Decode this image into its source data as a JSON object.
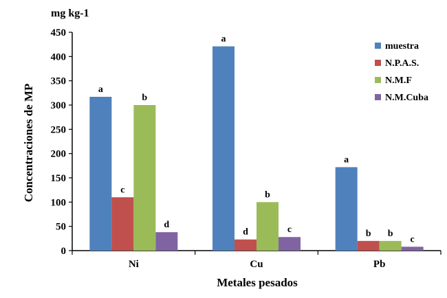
{
  "chart_data": {
    "type": "bar",
    "title": "",
    "unit_label": "mg kg-1",
    "xlabel": "Metales pesados",
    "ylabel": "Concentraciones de MP",
    "ylim": [
      0,
      450
    ],
    "yticks": [
      0,
      50,
      100,
      150,
      200,
      250,
      300,
      350,
      400,
      450
    ],
    "tick_labels": [
      "0",
      "50",
      "100",
      "150",
      "200",
      "250",
      "300",
      "350",
      "400",
      "450"
    ],
    "categories": [
      "Ni",
      "Cu",
      "Pb"
    ],
    "series": [
      {
        "name": "muestra",
        "color": "#4f81bd",
        "values": [
          317,
          421,
          172
        ],
        "letters": [
          "a",
          "a",
          "a"
        ]
      },
      {
        "name": "N.P.A.S.",
        "color": "#c0504d",
        "values": [
          110,
          23,
          20
        ],
        "letters": [
          "c",
          "d",
          "b"
        ]
      },
      {
        "name": "N.M.F",
        "color": "#9bbb59",
        "values": [
          300,
          100,
          20
        ],
        "letters": [
          "b",
          "b",
          "b"
        ]
      },
      {
        "name": "N.M.Cuba",
        "color": "#8064a2",
        "values": [
          38,
          28,
          8
        ],
        "letters": [
          "d",
          "c",
          "c"
        ]
      }
    ],
    "grid": false,
    "legend_position": "top-right"
  }
}
